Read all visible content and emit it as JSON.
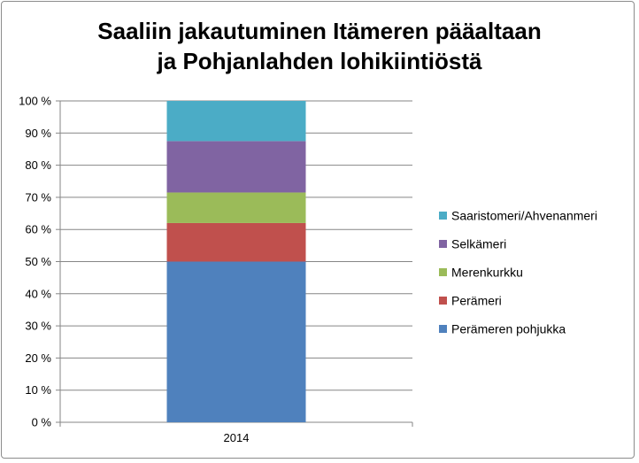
{
  "chart_data": {
    "type": "bar",
    "stacked": "percent",
    "title": [
      "Saaliin jakautuminen Itämeren pääaltaan",
      "ja Pohjanlahden lohikiintiöstä"
    ],
    "xlabel": "",
    "ylabel": "",
    "categories": [
      "2014"
    ],
    "ylim": [
      0,
      100
    ],
    "yticks": [
      0,
      10,
      20,
      30,
      40,
      50,
      60,
      70,
      80,
      90,
      100
    ],
    "ytick_labels": [
      "0 %",
      "10 %",
      "20 %",
      "30 %",
      "40 %",
      "50 %",
      "60 %",
      "70 %",
      "80 %",
      "90 %",
      "100 %"
    ],
    "grid": true,
    "legend_position": "right",
    "series": [
      {
        "name": "Perämeren pohjukka",
        "values": [
          50
        ],
        "color": "#4f81bd"
      },
      {
        "name": "Perämeri",
        "values": [
          12
        ],
        "color": "#c0504d"
      },
      {
        "name": "Merenkurkku",
        "values": [
          9.5
        ],
        "color": "#9bbb59"
      },
      {
        "name": "Selkämeri",
        "values": [
          16
        ],
        "color": "#8064a2"
      },
      {
        "name": "Saaristomeri/Ahvenanmeri",
        "values": [
          12.5
        ],
        "color": "#4bacc6"
      }
    ]
  }
}
